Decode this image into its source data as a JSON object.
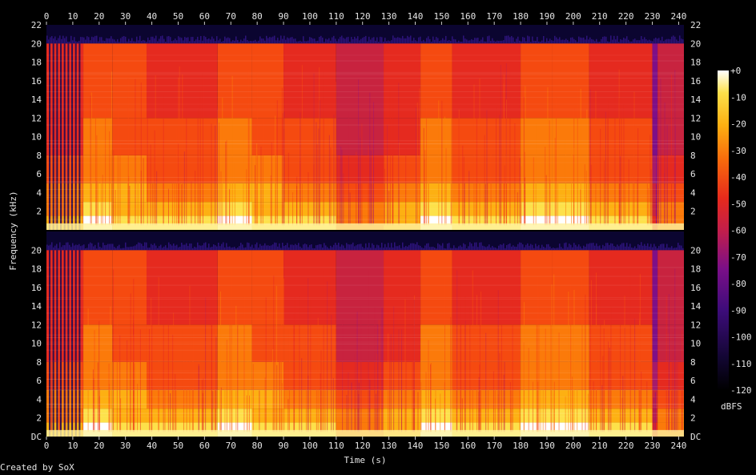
{
  "chart_data": {
    "type": "heatmap",
    "subtype": "spectrogram",
    "channels": 2,
    "xlabel": "Time (s)",
    "ylabel": "Frequency (kHz)",
    "colorbar_label": "dBFS",
    "xlim": [
      0,
      242
    ],
    "ylim_khz": [
      0,
      22
    ],
    "x_ticks": [
      "0",
      "10",
      "20",
      "30",
      "40",
      "50",
      "60",
      "70",
      "80",
      "90",
      "100",
      "110",
      "120",
      "130",
      "140",
      "150",
      "160",
      "170",
      "180",
      "190",
      "200",
      "210",
      "220",
      "230",
      "240"
    ],
    "y_ticks_top": [
      "2",
      "4",
      "6",
      "8",
      "10",
      "12",
      "14",
      "16",
      "18",
      "20",
      "22"
    ],
    "y_ticks_bottom": [
      "DC",
      "2",
      "4",
      "6",
      "8",
      "10",
      "12",
      "14",
      "16",
      "18",
      "20"
    ],
    "colorbar_ticks": [
      "+0",
      "-10",
      "-20",
      "-30",
      "-40",
      "-50",
      "-60",
      "-70",
      "-80",
      "-90",
      "-100",
      "-110",
      "-120"
    ],
    "colorbar_range_db": [
      -120,
      0
    ],
    "grid": false,
    "cutoff_khz": 20,
    "segments": [
      {
        "t0": 0,
        "t1": 14,
        "level": 0.55,
        "dark_gaps": true
      },
      {
        "t0": 14,
        "t1": 25,
        "level": 0.68
      },
      {
        "t0": 25,
        "t1": 38,
        "level": 0.64
      },
      {
        "t0": 38,
        "t1": 65,
        "level": 0.6
      },
      {
        "t0": 65,
        "t1": 78,
        "level": 0.7
      },
      {
        "t0": 78,
        "t1": 90,
        "level": 0.64
      },
      {
        "t0": 90,
        "t1": 110,
        "level": 0.6
      },
      {
        "t0": 110,
        "t1": 128,
        "level": 0.5
      },
      {
        "t0": 128,
        "t1": 142,
        "level": 0.58
      },
      {
        "t0": 142,
        "t1": 154,
        "level": 0.7
      },
      {
        "t0": 154,
        "t1": 180,
        "level": 0.6
      },
      {
        "t0": 180,
        "t1": 192,
        "level": 0.68
      },
      {
        "t0": 192,
        "t1": 206,
        "level": 0.7
      },
      {
        "t0": 206,
        "t1": 230,
        "level": 0.6
      },
      {
        "t0": 230,
        "t1": 232,
        "level": 0.3
      },
      {
        "t0": 232,
        "t1": 242,
        "level": 0.5
      }
    ]
  },
  "colors": {
    "background": "#000000",
    "text": "#e6e6e6",
    "colormap": [
      "#000000",
      "#0a0533",
      "#2b0a6a",
      "#55108a",
      "#7e0f86",
      "#a51a6a",
      "#c8233f",
      "#e52a1f",
      "#f54a10",
      "#fb7a0a",
      "#fdb012",
      "#fde14a",
      "#ffffff"
    ]
  },
  "footer": "Created by SoX"
}
